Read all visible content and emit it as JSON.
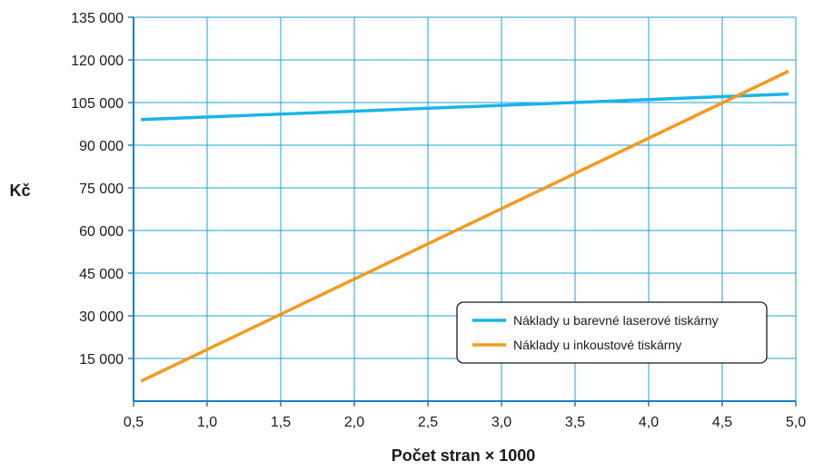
{
  "chart_data": {
    "type": "line",
    "title": "",
    "xlabel": "Počet stran × 1000",
    "ylabel": "Kč",
    "xlim": [
      0.5,
      5.0
    ],
    "ylim": [
      0,
      135000
    ],
    "x_ticks": [
      0.5,
      1.0,
      1.5,
      2.0,
      2.5,
      3.0,
      3.5,
      4.0,
      4.5,
      5.0
    ],
    "x_tick_labels": [
      "0,5",
      "1,0",
      "1,5",
      "2,0",
      "2,5",
      "3,0",
      "3,5",
      "4,0",
      "4,5",
      "5,0"
    ],
    "y_ticks": [
      15000,
      30000,
      45000,
      60000,
      75000,
      90000,
      105000,
      120000,
      135000
    ],
    "y_tick_labels": [
      "15 000",
      "30 000",
      "45 000",
      "60 000",
      "75 000",
      "90 000",
      "105 000",
      "120 000",
      "135 000"
    ],
    "grid": true,
    "legend_placement": "lower-right",
    "series": [
      {
        "name": "Náklady u barevné laserové tiskárny",
        "color": "#1ab4e8",
        "x": [
          0.55,
          4.95
        ],
        "y": [
          99000,
          108000
        ]
      },
      {
        "name": "Náklady u inkoustové tiskárny",
        "color": "#f39a1e",
        "x": [
          0.55,
          4.95
        ],
        "y": [
          7000,
          116000
        ]
      }
    ],
    "colors": {
      "grid": "#1aa3d9",
      "axis": "#1a7fc4"
    }
  }
}
